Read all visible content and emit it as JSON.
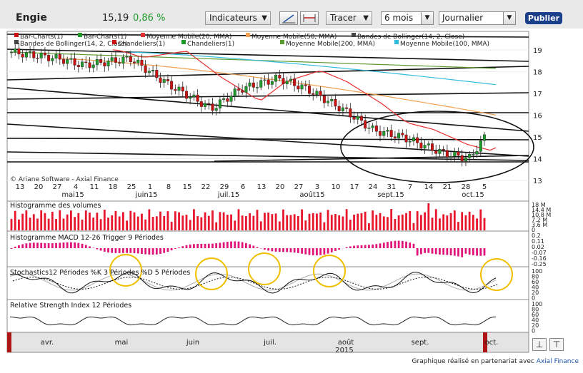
{
  "header": {
    "ticker": "Engie",
    "price": "15,19",
    "change": "0,86 %",
    "indicators_label": "Indicateurs",
    "draw_label": "Tracer",
    "period_value": "6 mois",
    "interval_value": "Journalier",
    "publish_label": "Publier"
  },
  "icons": {
    "line_tool": "line-draw-icon",
    "hline_tool": "horizontal-line-icon",
    "dropdown": "chevron-down-icon",
    "zoom_in": "split-pane-icon",
    "zoom_out": "merge-pane-icon"
  },
  "main_panel": {
    "legend_row1": [
      "Bar-Charts(1)",
      "Bar-Charts(1)",
      "Moyenne Mobile(20, MMA)",
      "Moyenne Mobile(50, MMA)",
      "Bandes de Bollinger(14, 2, Close)"
    ],
    "legend_row2": [
      "Bandes de Bollinger(14, 2, Close)",
      "Chandeliers(1)",
      "Chandeliers(1)",
      "Moyenne Mobile(200, MMA)",
      "Moyenne Mobile(100, MMA)"
    ],
    "watermark": "© Ariane Software - Axial Finance",
    "y_ticks": [
      "19",
      "18",
      "17",
      "16",
      "15",
      "14",
      "13"
    ],
    "x_day_ticks": [
      "13",
      "20",
      "27",
      "4",
      "11",
      "18",
      "25",
      "1",
      "8",
      "15",
      "22",
      "29",
      "6",
      "13",
      "20",
      "27",
      "3",
      "10",
      "17",
      "24",
      "31",
      "7",
      "14",
      "21",
      "28",
      "5"
    ],
    "x_month_ticks": [
      "mai15",
      "juin15",
      "juil.15",
      "août15",
      "sept.15",
      "oct.15"
    ]
  },
  "volume_panel": {
    "title": "Histogramme des volumes",
    "y_ticks": [
      "18 M",
      "14.4 M",
      "10.8 M",
      "7.2 M",
      "3.6 M",
      "0"
    ]
  },
  "macd_panel": {
    "title": "Histogramme MACD 12-26   Trigger 9 Périodes",
    "y_ticks": [
      "0.2",
      "0.11",
      "0.02",
      "-0.07",
      "-0.16",
      "-0.25"
    ]
  },
  "stoch_panel": {
    "title": "Stochastics12 Périodes   %K 3 Périodes   %D 5 Périodes",
    "y_ticks": [
      "100",
      "80",
      "60",
      "40",
      "20",
      "0"
    ]
  },
  "rsi_panel": {
    "title": "Relative Strength Index 12 Périodes",
    "y_ticks": [
      "100",
      "80",
      "60",
      "40",
      "20",
      "0"
    ]
  },
  "navigator": {
    "months": [
      "avr.",
      "mai",
      "juin",
      "juil.",
      "août",
      "sept.",
      "oct."
    ],
    "year": "2015"
  },
  "footer": {
    "credit_text": "Graphique réalisé en partenariat avec",
    "credit_link": "Axial Finance"
  },
  "colors": {
    "up": "#1f9a2b",
    "down": "#cc1111",
    "volume": "#e8162c",
    "macd": "#e0157a",
    "ma20": "#e83030",
    "ma50": "#f0a050",
    "ma100": "#33bbdd",
    "ma200": "#5a9a30",
    "highlight": "#f0c000"
  }
}
